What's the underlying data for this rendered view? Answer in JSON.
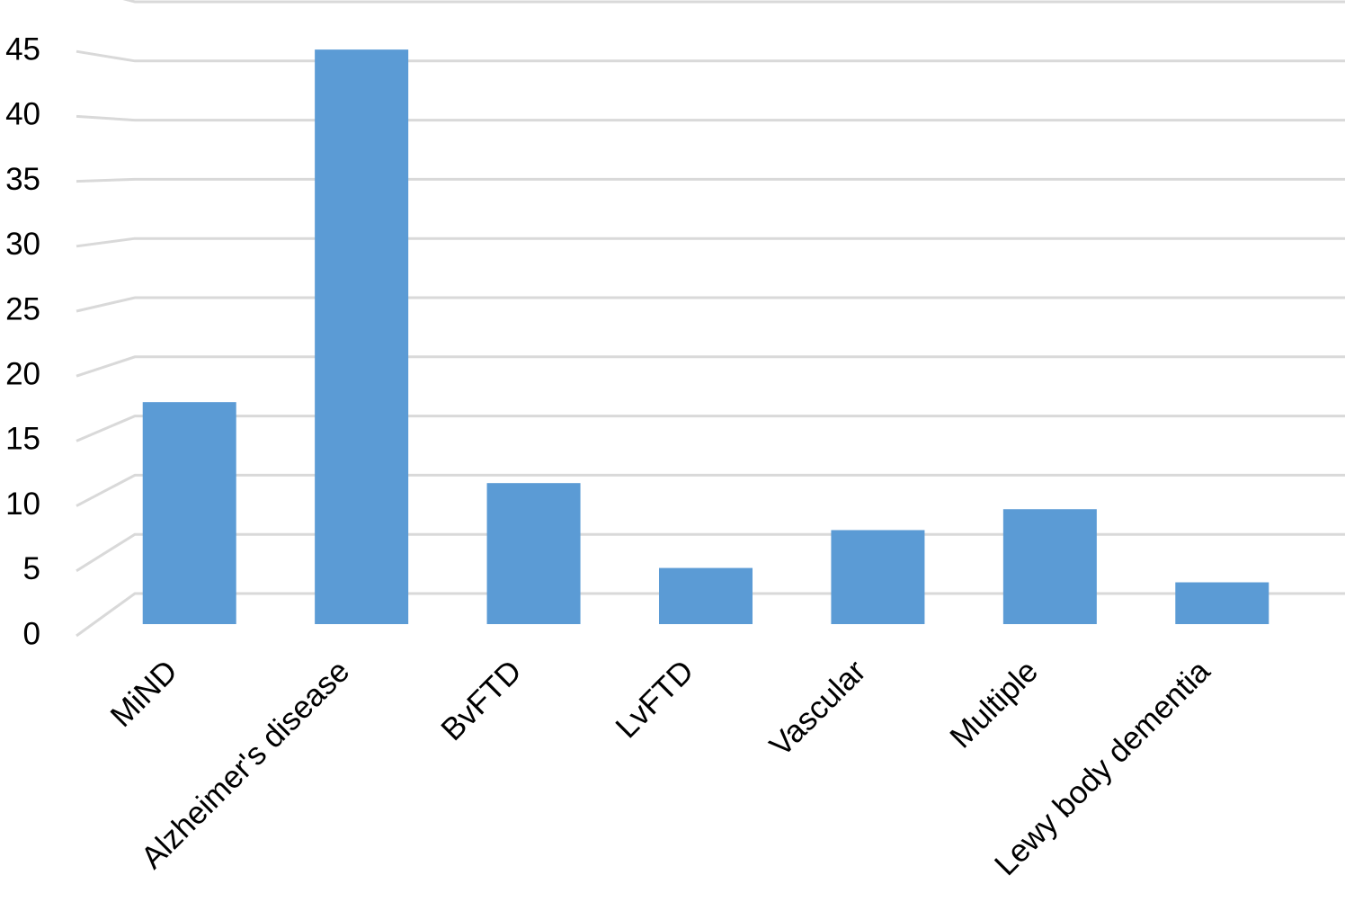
{
  "chart_data": {
    "type": "bar",
    "categories": [
      "MiND",
      "Alzheimer's disease",
      "BvFTD",
      "LvFTD",
      "Vascular",
      "Multiple",
      "Lewy body dementia"
    ],
    "values": [
      17,
      44,
      10.8,
      4.3,
      7.2,
      8.8,
      3.2
    ],
    "color": "#5b9bd5",
    "ylim": [
      0,
      50
    ],
    "yticks": [
      0,
      5,
      10,
      15,
      20,
      25,
      30,
      35,
      40,
      45
    ],
    "grid": true
  }
}
